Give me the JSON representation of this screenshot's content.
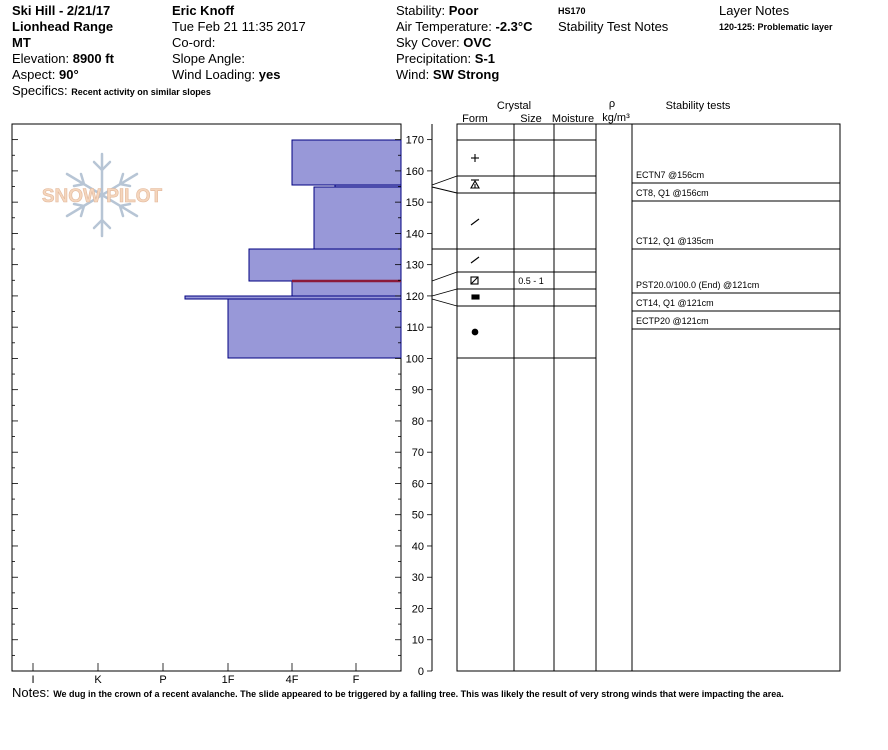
{
  "header": {
    "location": "Ski Hill - 2/21/17",
    "range": "Lionhead Range",
    "state": "MT",
    "elevation_label": "Elevation:",
    "elevation_value": "8900 ft",
    "aspect_label": "Aspect:",
    "aspect_value": "90°",
    "specifics_label": "Specifics:",
    "specifics_value": "Recent activity on similar slopes",
    "observer": "Eric Knoff",
    "datetime": "Tue Feb 21 11:35 2017",
    "coord_label": "Co-ord:",
    "slope_label": "Slope Angle:",
    "wind_loading_label": "Wind Loading:",
    "wind_loading_value": "yes",
    "stability_label": "Stability:",
    "stability_value": "Poor",
    "air_temp_label": "Air Temperature:",
    "air_temp_value": "-2.3°C",
    "sky_label": "Sky Cover:",
    "sky_value": "OVC",
    "precip_label": "Precipitation:",
    "precip_value": "S-1",
    "wind_label": "Wind:",
    "wind_value": "SW Strong",
    "hs": "HS170",
    "stability_test_notes": "Stability Test Notes",
    "layer_notes_title": "Layer Notes",
    "layer_note": "120-125: Problematic layer"
  },
  "columns": {
    "crystal": "Crystal",
    "form": "Form",
    "size": "Size",
    "moisture": "Moisture",
    "rho": "ρ",
    "density_unit": "kg/m³",
    "stability_tests": "Stability tests"
  },
  "logo_text": "SNOW PILOT",
  "hardness_labels": [
    "I",
    "K",
    "P",
    "1F",
    "4F",
    "F"
  ],
  "depth_labels": [
    "0",
    "10",
    "20",
    "30",
    "40",
    "50",
    "60",
    "70",
    "80",
    "90",
    "100",
    "110",
    "120",
    "130",
    "140",
    "150",
    "160",
    "170"
  ],
  "stability_tests": [
    {
      "text": "ECTN7 @156cm"
    },
    {
      "text": "CT8, Q1 @156cm"
    },
    {
      "text": "CT12, Q1 @135cm"
    },
    {
      "text": "PST20.0/100.0 (End) @121cm"
    },
    {
      "text": "CT14, Q1 @121cm"
    },
    {
      "text": "ECTP20 @121cm"
    }
  ],
  "crystal_sizes": [
    {
      "text": "0.5 - 1"
    }
  ],
  "notes": {
    "label": "Notes:",
    "text": "We dug in the crown of a recent avalanche. The slide appeared to be triggered by a falling tree. This was likely the result of very strong winds that were impacting the area."
  },
  "colors": {
    "layer_fill": "#9898d8",
    "layer_stroke": "#000080",
    "problem_layer": "#8b1a3a",
    "logo_orange": "#f2c9a8"
  }
}
